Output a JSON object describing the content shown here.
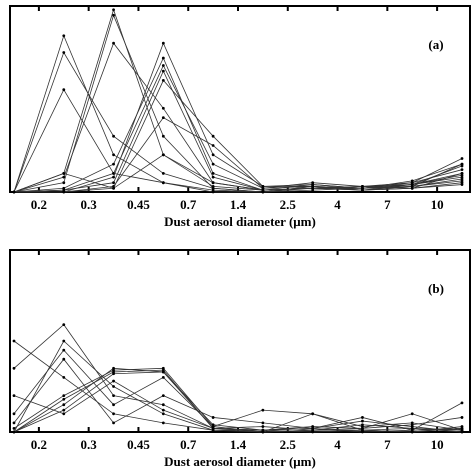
{
  "chart_data": [
    {
      "type": "line",
      "annotation": "(a)",
      "xlabel": "Dust aerosol diameter (μm)",
      "categories": [
        null,
        null,
        null,
        null,
        null,
        null,
        null,
        null,
        null,
        null
      ],
      "bin_edges": [
        "0.2",
        "0.3",
        "0.45",
        "0.7",
        "1.4",
        "2.5",
        "4",
        "7",
        "10"
      ],
      "ylim": [
        0,
        100
      ],
      "color": "#333333",
      "series": [
        {
          "values": [
            0,
            84,
            20,
            5,
            0,
            0,
            2,
            1,
            2,
            10
          ]
        },
        {
          "values": [
            0,
            75,
            30,
            10,
            2,
            0,
            1,
            2,
            3,
            15
          ]
        },
        {
          "values": [
            0,
            55,
            10,
            5,
            1,
            0,
            3,
            2,
            4,
            8
          ]
        },
        {
          "values": [
            0,
            10,
            98,
            20,
            3,
            1,
            2,
            3,
            5,
            12
          ]
        },
        {
          "values": [
            0,
            5,
            95,
            30,
            2,
            0,
            3,
            1,
            3,
            6
          ]
        },
        {
          "values": [
            0,
            8,
            80,
            45,
            5,
            1,
            2,
            2,
            4,
            9
          ]
        },
        {
          "values": [
            0,
            2,
            15,
            72,
            10,
            1,
            4,
            2,
            3,
            7
          ]
        },
        {
          "values": [
            0,
            1,
            10,
            68,
            15,
            2,
            5,
            3,
            4,
            14
          ]
        },
        {
          "values": [
            0,
            1,
            5,
            65,
            8,
            1,
            2,
            1,
            2,
            5
          ]
        },
        {
          "values": [
            0,
            0,
            8,
            80,
            20,
            3,
            3,
            2,
            5,
            18
          ]
        },
        {
          "values": [
            0,
            0,
            3,
            40,
            25,
            2,
            3,
            1,
            4,
            10
          ]
        },
        {
          "values": [
            0,
            0,
            2,
            20,
            5,
            1,
            2,
            3,
            2,
            4
          ]
        },
        {
          "values": [
            0,
            10,
            2,
            60,
            30,
            3,
            4,
            2,
            6,
            15
          ]
        }
      ]
    },
    {
      "type": "line",
      "annotation": "(b)",
      "xlabel": "Dust aerosol diameter (μm)",
      "categories": [
        null,
        null,
        null,
        null,
        null,
        null,
        null,
        null,
        null,
        null
      ],
      "bin_edges": [
        "0.2",
        "0.3",
        "0.45",
        "0.7",
        "1.4",
        "2.5",
        "4",
        "7",
        "10"
      ],
      "ylim": [
        0,
        100
      ],
      "color": "#333333",
      "series": [
        {
          "values": [
            50,
            30,
            10,
            5,
            1,
            0,
            10,
            1,
            0,
            2
          ]
        },
        {
          "values": [
            35,
            59,
            20,
            15,
            2,
            1,
            2,
            8,
            1,
            16
          ]
        },
        {
          "values": [
            2,
            20,
            34,
            35,
            3,
            0,
            1,
            2,
            10,
            1
          ]
        },
        {
          "values": [
            0,
            18,
            33,
            34,
            2,
            1,
            0,
            1,
            2,
            0
          ]
        },
        {
          "values": [
            0,
            15,
            35,
            33,
            4,
            1,
            2,
            0,
            1,
            2
          ]
        },
        {
          "values": [
            0,
            12,
            32,
            33,
            2,
            0,
            1,
            1,
            0,
            3
          ]
        },
        {
          "values": [
            10,
            45,
            15,
            30,
            3,
            12,
            10,
            3,
            5,
            1
          ]
        },
        {
          "values": [
            5,
            40,
            5,
            20,
            8,
            5,
            2,
            6,
            3,
            0
          ]
        },
        {
          "values": [
            0,
            50,
            25,
            10,
            1,
            1,
            3,
            2,
            4,
            8
          ]
        },
        {
          "values": [
            20,
            10,
            28,
            12,
            2,
            3,
            1,
            4,
            2,
            1
          ]
        }
      ]
    }
  ]
}
